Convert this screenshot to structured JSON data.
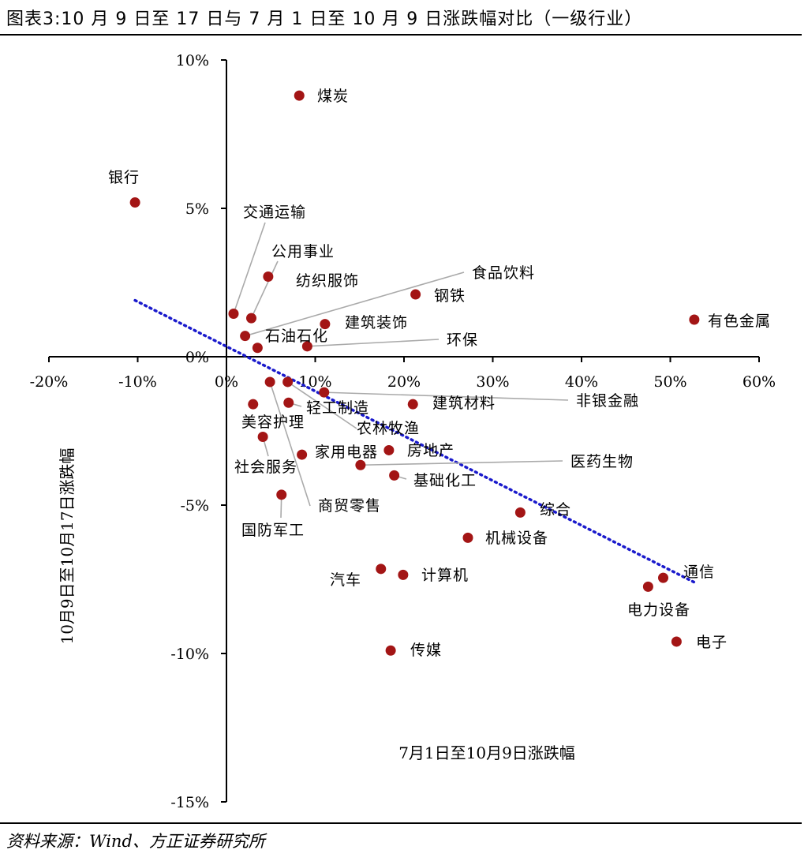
{
  "title": "图表3:10 月 9 日至 17 日与 7 月 1 日至 10 月 9 日涨跌幅对比（一级行业）",
  "source": "资料来源：Wind、方正证券研究所",
  "chart_data": {
    "type": "scatter",
    "xlabel": "7月1日至10月9日涨跌幅",
    "ylabel": "10月9日至10月17日涨跌幅",
    "xlim": [
      -20,
      60
    ],
    "ylim": [
      -15,
      10
    ],
    "xticks": [
      -20,
      -10,
      0,
      10,
      20,
      30,
      40,
      50,
      60
    ],
    "yticks": [
      10,
      5,
      0,
      -5,
      -10,
      -15
    ],
    "xtick_labels": [
      "-20%",
      "-10%",
      "0%",
      "10%",
      "20%",
      "30%",
      "40%",
      "50%",
      "60%"
    ],
    "ytick_labels": [
      "10%",
      "5%",
      "0%",
      "-5%",
      "-10%",
      "-15%"
    ],
    "point_color": "#a31515",
    "trendline": {
      "color": "#1a1acc",
      "style": "dotted",
      "x": [
        -10.3,
        52.7
      ],
      "y": [
        1.9,
        -7.6
      ]
    },
    "points": [
      {
        "name": "煤炭",
        "x": 8.2,
        "y": 8.8
      },
      {
        "name": "银行",
        "x": -10.3,
        "y": 5.2
      },
      {
        "name": "交通运输",
        "x": 0.8,
        "y": 1.45
      },
      {
        "name": "公用事业",
        "x": 2.8,
        "y": 1.3
      },
      {
        "name": "纺织服饰",
        "x": 4.7,
        "y": 2.7
      },
      {
        "name": "食品饮料",
        "x": 2.1,
        "y": 0.7
      },
      {
        "name": "钢铁",
        "x": 21.3,
        "y": 2.1
      },
      {
        "name": "有色金属",
        "x": 52.7,
        "y": 1.25
      },
      {
        "name": "建筑装饰",
        "x": 11.1,
        "y": 1.1
      },
      {
        "name": "石油石化",
        "x": 3.5,
        "y": 0.3
      },
      {
        "name": "环保",
        "x": 9.1,
        "y": 0.35
      },
      {
        "name": "非银金融",
        "x": 11.0,
        "y": -1.2
      },
      {
        "name": "建筑材料",
        "x": 21.0,
        "y": -1.6
      },
      {
        "name": "农林牧渔",
        "x": 6.9,
        "y": -0.85
      },
      {
        "name": "轻工制造",
        "x": 7.0,
        "y": -1.55
      },
      {
        "name": "美容护理",
        "x": 3.0,
        "y": -1.6
      },
      {
        "name": "商贸零售",
        "x": 4.9,
        "y": -0.85
      },
      {
        "name": "社会服务",
        "x": 4.1,
        "y": -2.7
      },
      {
        "name": "家用电器",
        "x": 8.5,
        "y": -3.3
      },
      {
        "name": "房地产",
        "x": 18.3,
        "y": -3.15
      },
      {
        "name": "医药生物",
        "x": 15.1,
        "y": -3.65
      },
      {
        "name": "基础化工",
        "x": 18.9,
        "y": -4.0
      },
      {
        "name": "国防军工",
        "x": 6.2,
        "y": -4.65
      },
      {
        "name": "综合",
        "x": 33.1,
        "y": -5.25
      },
      {
        "name": "机械设备",
        "x": 27.2,
        "y": -6.1
      },
      {
        "name": "汽车",
        "x": 17.4,
        "y": -7.15
      },
      {
        "name": "计算机",
        "x": 19.9,
        "y": -7.35
      },
      {
        "name": "通信",
        "x": 49.2,
        "y": -7.45
      },
      {
        "name": "电力设备",
        "x": 47.5,
        "y": -7.75
      },
      {
        "name": "电子",
        "x": 50.7,
        "y": -9.6
      },
      {
        "name": "传媒",
        "x": 18.5,
        "y": -9.9
      }
    ]
  }
}
